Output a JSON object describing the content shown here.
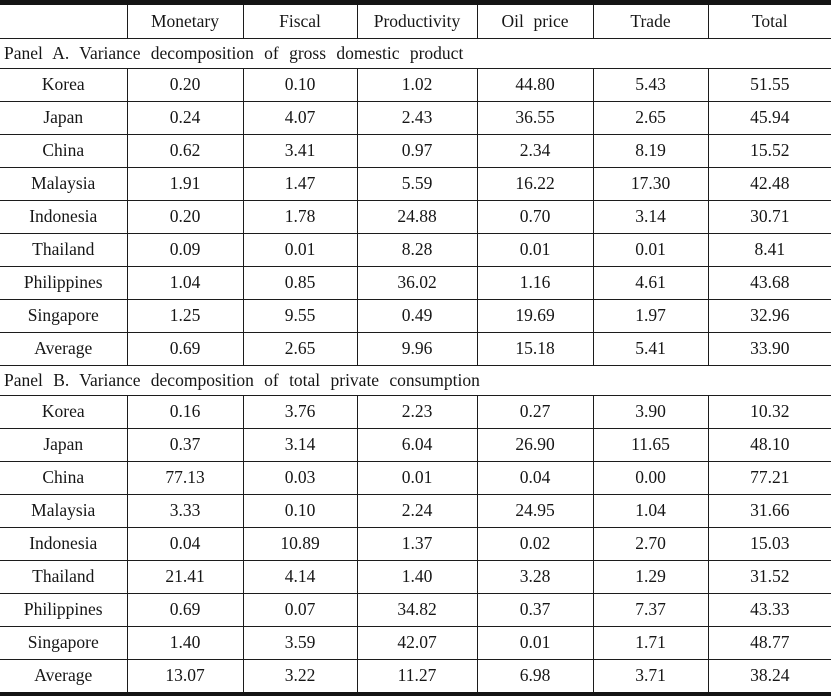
{
  "table": {
    "columns": [
      "",
      "Monetary",
      "Fiscal",
      "Productivity",
      "Oil price",
      "Trade",
      "Total"
    ],
    "panels": [
      {
        "title": "Panel A. Variance decomposition of gross domestic product",
        "rows": [
          {
            "label": "Korea",
            "values": [
              "0.20",
              "0.10",
              "1.02",
              "44.80",
              "5.43",
              "51.55"
            ]
          },
          {
            "label": "Japan",
            "values": [
              "0.24",
              "4.07",
              "2.43",
              "36.55",
              "2.65",
              "45.94"
            ]
          },
          {
            "label": "China",
            "values": [
              "0.62",
              "3.41",
              "0.97",
              "2.34",
              "8.19",
              "15.52"
            ]
          },
          {
            "label": "Malaysia",
            "values": [
              "1.91",
              "1.47",
              "5.59",
              "16.22",
              "17.30",
              "42.48"
            ]
          },
          {
            "label": "Indonesia",
            "values": [
              "0.20",
              "1.78",
              "24.88",
              "0.70",
              "3.14",
              "30.71"
            ]
          },
          {
            "label": "Thailand",
            "values": [
              "0.09",
              "0.01",
              "8.28",
              "0.01",
              "0.01",
              "8.41"
            ]
          },
          {
            "label": "Philippines",
            "values": [
              "1.04",
              "0.85",
              "36.02",
              "1.16",
              "4.61",
              "43.68"
            ]
          },
          {
            "label": "Singapore",
            "values": [
              "1.25",
              "9.55",
              "0.49",
              "19.69",
              "1.97",
              "32.96"
            ]
          },
          {
            "label": "Average",
            "values": [
              "0.69",
              "2.65",
              "9.96",
              "15.18",
              "5.41",
              "33.90"
            ]
          }
        ]
      },
      {
        "title": "Panel B. Variance decomposition of total private consumption",
        "rows": [
          {
            "label": "Korea",
            "values": [
              "0.16",
              "3.76",
              "2.23",
              "0.27",
              "3.90",
              "10.32"
            ]
          },
          {
            "label": "Japan",
            "values": [
              "0.37",
              "3.14",
              "6.04",
              "26.90",
              "11.65",
              "48.10"
            ]
          },
          {
            "label": "China",
            "values": [
              "77.13",
              "0.03",
              "0.01",
              "0.04",
              "0.00",
              "77.21"
            ]
          },
          {
            "label": "Malaysia",
            "values": [
              "3.33",
              "0.10",
              "2.24",
              "24.95",
              "1.04",
              "31.66"
            ]
          },
          {
            "label": "Indonesia",
            "values": [
              "0.04",
              "10.89",
              "1.37",
              "0.02",
              "2.70",
              "15.03"
            ]
          },
          {
            "label": "Thailand",
            "values": [
              "21.41",
              "4.14",
              "1.40",
              "3.28",
              "1.29",
              "31.52"
            ]
          },
          {
            "label": "Philippines",
            "values": [
              "0.69",
              "0.07",
              "34.82",
              "0.37",
              "7.37",
              "43.33"
            ]
          },
          {
            "label": "Singapore",
            "values": [
              "1.40",
              "3.59",
              "42.07",
              "0.01",
              "1.71",
              "48.77"
            ]
          },
          {
            "label": "Average",
            "values": [
              "13.07",
              "3.22",
              "11.27",
              "6.98",
              "3.71",
              "38.24"
            ]
          }
        ]
      }
    ]
  },
  "colors": {
    "text": "#161616",
    "rule": "#141414",
    "background": "#ffffff"
  }
}
